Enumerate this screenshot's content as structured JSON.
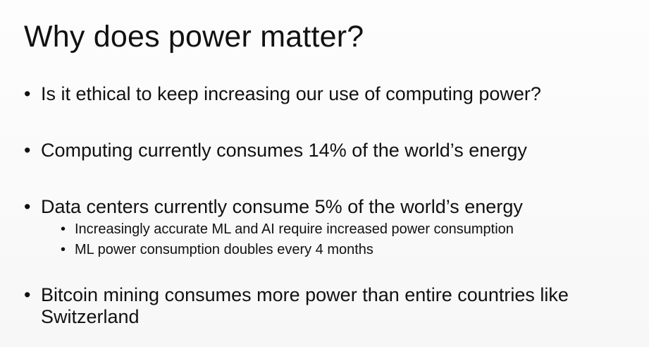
{
  "slide": {
    "title": "Why does power matter?",
    "bullet_glyph": "•",
    "bullets": [
      {
        "text": "Is it ethical to keep increasing our use of computing power?"
      },
      {
        "text": "Computing currently consumes 14% of the world’s energy"
      },
      {
        "text": "Data centers currently consume 5% of the world’s energy",
        "subbullets": [
          "Increasingly accurate ML and AI require increased power consumption",
          "ML power consumption doubles every 4 months"
        ]
      },
      {
        "text": "Bitcoin mining consumes more power than entire countries like Switzerland"
      }
    ]
  }
}
